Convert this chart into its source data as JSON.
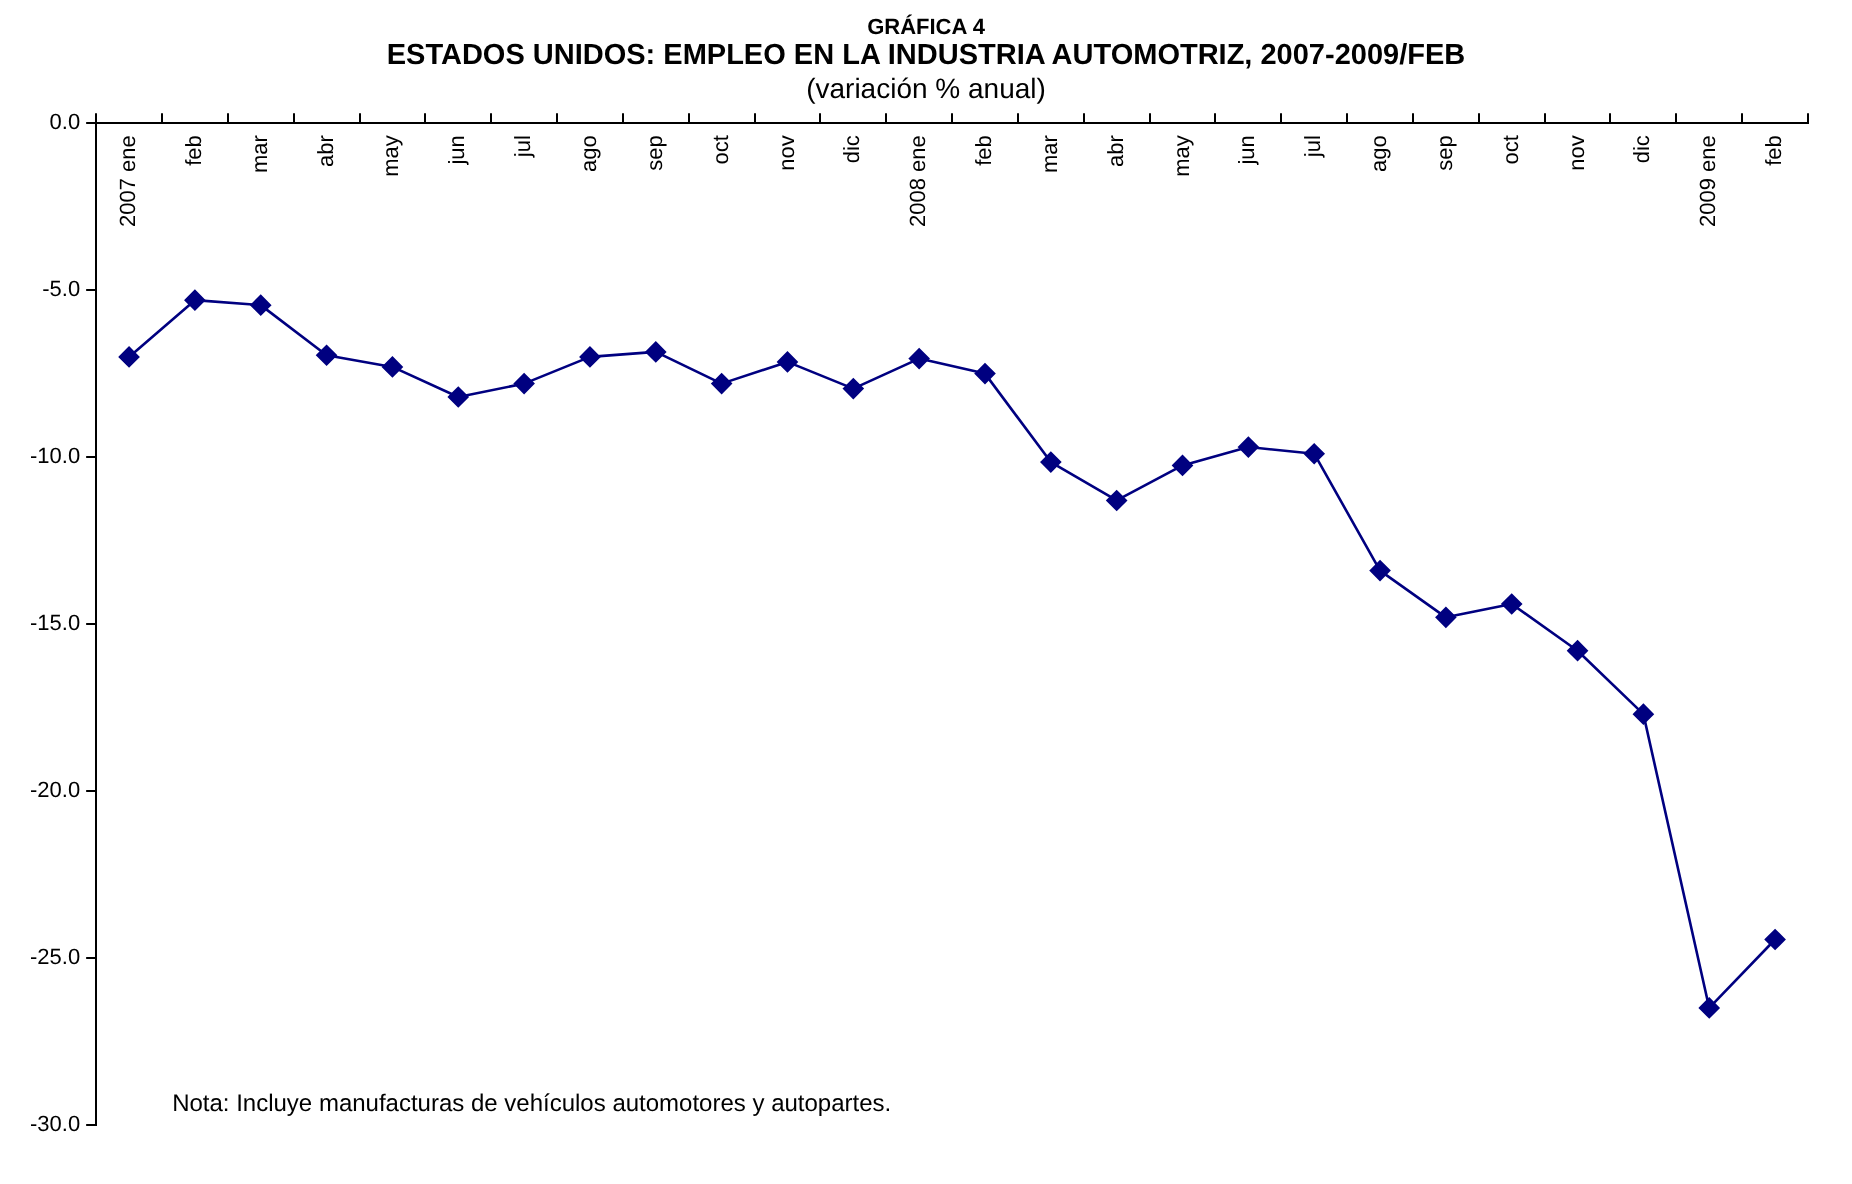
{
  "chart_data": {
    "type": "line",
    "title": "ESTADOS UNIDOS: EMPLEO EN LA INDUSTRIA AUTOMOTRIZ, 2007-2009/FEB",
    "subtitle": "(variación % anual)",
    "annotations": [
      "GRÁFICA 4",
      "Nota: Incluye manufacturas de vehículos automotores y autopartes."
    ],
    "categories": [
      "2007 ene",
      "feb",
      "mar",
      "abr",
      "may",
      "jun",
      "jul",
      "ago",
      "sep",
      "oct",
      "nov",
      "dic",
      "2008 ene",
      "feb",
      "mar",
      "abr",
      "may",
      "jun",
      "jul",
      "ago",
      "sep",
      "oct",
      "nov",
      "dic",
      "2009 ene",
      "feb"
    ],
    "series": [
      {
        "color": "#000080",
        "values": [
          -7.0,
          -5.3,
          -5.45,
          -6.95,
          -7.3,
          -8.2,
          -7.8,
          -7.0,
          -6.85,
          -7.8,
          -7.15,
          -7.95,
          -7.05,
          -7.5,
          -10.15,
          -11.3,
          -10.25,
          -9.7,
          -9.9,
          -13.4,
          -14.8,
          -14.4,
          -15.8,
          -17.7,
          -26.5,
          -24.45
        ]
      }
    ],
    "ylim": [
      -30,
      0
    ],
    "yticks": [
      {
        "value": 0,
        "label": "0.0"
      },
      {
        "value": -5,
        "label": "-5.0"
      },
      {
        "value": -10,
        "label": "-10.0"
      },
      {
        "value": -15,
        "label": "-15.0"
      },
      {
        "value": -20,
        "label": "-20.0"
      },
      {
        "value": -25,
        "label": "-25.0"
      },
      {
        "value": -30,
        "label": "-30.0"
      }
    ],
    "grid": false,
    "legend": false,
    "marker": "diamond",
    "line_style": "solid"
  }
}
